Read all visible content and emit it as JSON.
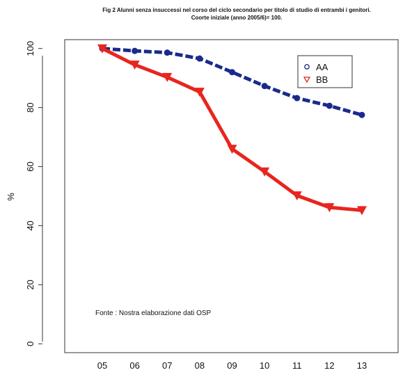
{
  "chart_data": {
    "type": "line",
    "title": "Fig 2 Alunni senza insuccessi nel corso del ciclo secondario per titolo di studio di entrambi i genitori.",
    "subtitle": "Coorte iniziale (anno 2005/6)= 100.",
    "xlabel": "",
    "ylabel": "%",
    "categories": [
      "05",
      "06",
      "07",
      "08",
      "09",
      "10",
      "11",
      "12",
      "13"
    ],
    "yticks": [
      "0",
      "20",
      "40",
      "60",
      "80",
      "100"
    ],
    "ylim": [
      -3,
      103
    ],
    "grid": false,
    "legend_position": "top-right",
    "annotation": "Fonte : Nostra elaborazione dati OSP",
    "series": [
      {
        "name": "AA",
        "color": "#1a2a8c",
        "marker": "circle",
        "values": [
          100,
          99.2,
          98.6,
          96.6,
          92,
          87.3,
          83.2,
          80.6,
          77.5
        ]
      },
      {
        "name": "BB",
        "color": "#e8251f",
        "marker": "triangle-down",
        "values": [
          100,
          94.5,
          90.3,
          85.3,
          66,
          58.3,
          50.2,
          46.2,
          45.2
        ]
      }
    ]
  }
}
